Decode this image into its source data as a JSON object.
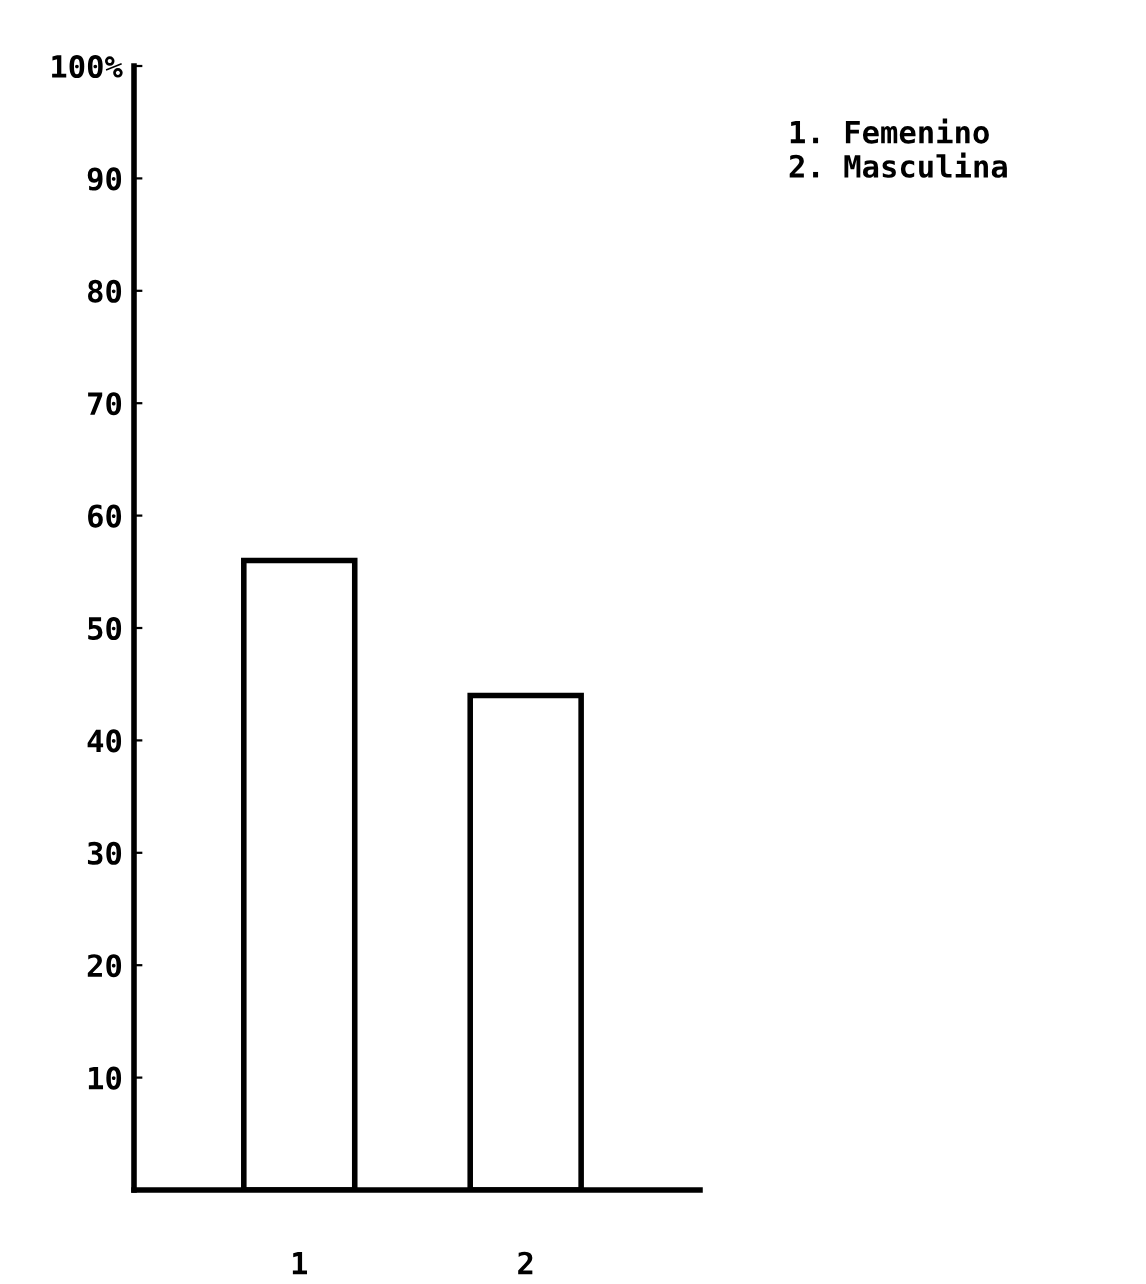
{
  "chart_data": {
    "type": "bar",
    "categories": [
      "1",
      "2"
    ],
    "values": [
      56,
      44
    ],
    "color": "#ffffff",
    "ylim": [
      0,
      100
    ],
    "yticks": [
      10,
      20,
      30,
      40,
      50,
      60,
      70,
      80,
      90,
      {
        "value": 100,
        "label": "100%"
      }
    ],
    "grid": false,
    "legend": false,
    "annotations": [
      "1. Femenino\n2. Masculina"
    ]
  }
}
